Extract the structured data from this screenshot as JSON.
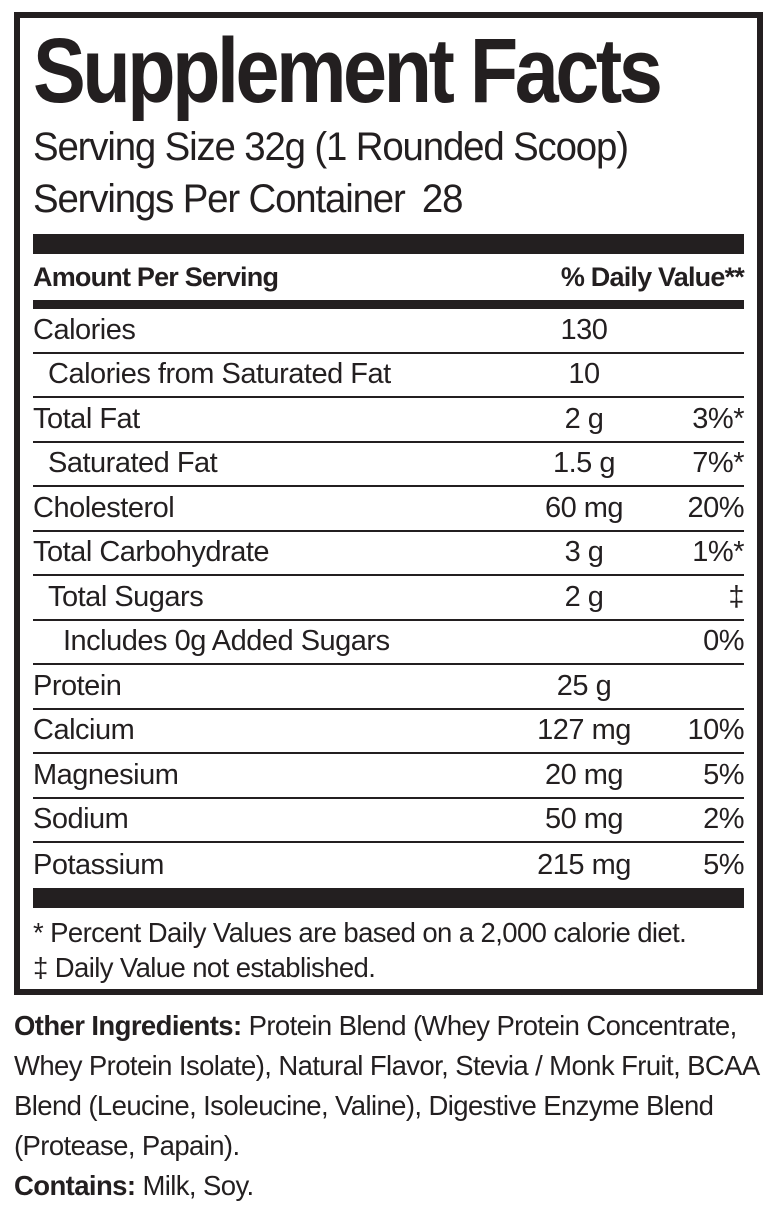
{
  "title": "Supplement Facts",
  "serving_size": "Serving Size 32g (1 Rounded Scoop)",
  "servings_per_container": {
    "label": "Servings Per Container",
    "value": "28"
  },
  "table": {
    "header": {
      "left": "Amount Per Serving",
      "right": "% Daily Value**"
    },
    "rows": [
      {
        "name": "Calories",
        "amount": "130",
        "dv": "",
        "indent": 0
      },
      {
        "name": "Calories from Saturated Fat",
        "amount": "10",
        "dv": "",
        "indent": 1
      },
      {
        "name": "Total Fat",
        "amount": "2 g",
        "dv": "3%*",
        "indent": 0
      },
      {
        "name": "Saturated Fat",
        "amount": "1.5 g",
        "dv": "7%*",
        "indent": 1
      },
      {
        "name": "Cholesterol",
        "amount": "60 mg",
        "dv": "20%",
        "indent": 0
      },
      {
        "name": "Total Carbohydrate",
        "amount": "3 g",
        "dv": "1%*",
        "indent": 0
      },
      {
        "name": "Total Sugars",
        "amount": "2 g",
        "dv": "‡",
        "indent": 1
      },
      {
        "name": "Includes 0g Added Sugars",
        "amount": "",
        "dv": "0%",
        "indent": 2
      },
      {
        "name": "Protein",
        "amount": "25 g",
        "dv": "",
        "indent": 0
      },
      {
        "name": "Calcium",
        "amount": "127 mg",
        "dv": "10%",
        "indent": 0
      },
      {
        "name": "Magnesium",
        "amount": "20 mg",
        "dv": "5%",
        "indent": 0
      },
      {
        "name": "Sodium",
        "amount": "50 mg",
        "dv": "2%",
        "indent": 0
      },
      {
        "name": "Potassium",
        "amount": "215 mg",
        "dv": "5%",
        "indent": 0
      }
    ]
  },
  "footnotes": [
    "* Percent Daily Values are based on a 2,000 calorie diet.",
    "‡ Daily Value not established."
  ],
  "other_ingredients": {
    "label": "Other Ingredients:",
    "text": " Protein Blend (Whey Protein Concentrate, Whey Protein Isolate), Natural Flavor, Stevia / Monk Fruit, BCAA Blend (Leucine, Isoleucine, Valine), Digestive Enzyme Blend (Protease, Papain)."
  },
  "contains": {
    "label": "Contains:",
    "text": " Milk, Soy."
  },
  "colors": {
    "ink": "#231f20",
    "background": "#ffffff"
  }
}
